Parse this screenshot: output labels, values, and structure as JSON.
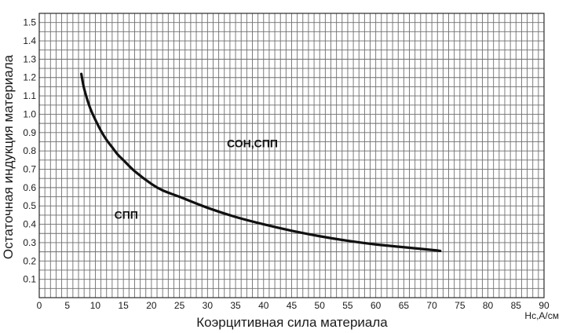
{
  "chart_data": {
    "type": "line",
    "title": "",
    "xlabel": "Коэрцитивная сила материала",
    "x_unit": "Hc,A/см",
    "ylabel": "Остаточная индукция материала",
    "xlim": [
      0,
      90
    ],
    "ylim": [
      0,
      1.55
    ],
    "grid": true,
    "x_ticks": [
      "0",
      "5",
      "10",
      "15",
      "20",
      "25",
      "30",
      "35",
      "40",
      "45",
      "50",
      "55",
      "60",
      "65",
      "70",
      "75",
      "80",
      "85",
      "90"
    ],
    "y_ticks": [
      "0.1",
      "0.2",
      "0.3",
      "0.4",
      "0.5",
      "0.6",
      "0.7",
      "0.8",
      "0.9",
      "1.0",
      "1.1",
      "1.2",
      "1.3",
      "1.4",
      "1.5"
    ],
    "series": [
      {
        "x": [
          7.5,
          8,
          9,
          10,
          11,
          12,
          13,
          14,
          15,
          17,
          20,
          22,
          25,
          30,
          35,
          40,
          45,
          50,
          55,
          60,
          65,
          70,
          71.5
        ],
        "y": [
          1.22,
          1.14,
          1.04,
          0.97,
          0.91,
          0.86,
          0.82,
          0.78,
          0.75,
          0.69,
          0.62,
          0.585,
          0.55,
          0.49,
          0.44,
          0.4,
          0.365,
          0.335,
          0.31,
          0.29,
          0.275,
          0.26,
          0.255
        ]
      }
    ],
    "annotations": [
      {
        "text": "СОН,СПП",
        "x": 38,
        "y": 0.82
      },
      {
        "text": "СПП",
        "x": 15.5,
        "y": 0.43
      }
    ]
  }
}
